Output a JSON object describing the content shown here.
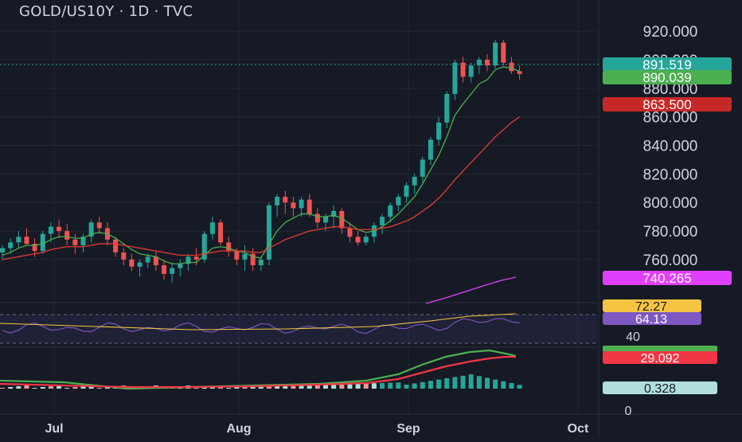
{
  "title": "GOLD/US10Y · 1D · TVC",
  "colors": {
    "background": "#161a25",
    "up": "#26a69a",
    "down": "#ef5350",
    "ema_fast": "#4caf50",
    "ema_slow": "#e53935",
    "ma_long": "#e040fb",
    "rsi": "#7e57c2",
    "rsi_ma": "#f5c542",
    "macd": "#4caf50",
    "signal": "#f23645",
    "grid": "#232734",
    "text": "#d1d4dc"
  },
  "price_axis": {
    "ticks": [
      "920.000",
      "900.000",
      "880.000",
      "860.000",
      "840.000",
      "820.000",
      "800.000",
      "780.000",
      "760.000"
    ],
    "ylim": [
      746,
      924
    ]
  },
  "x_labels": [
    "Jul",
    "Aug",
    "Sep",
    "Oct"
  ],
  "tags": [
    {
      "label": "891.519",
      "value": 891.519,
      "color": "#26a69a",
      "text_color": "#ffffff"
    },
    {
      "label": "890.039",
      "value": 890.039,
      "color": "#4caf50",
      "text_color": "#ffffff"
    },
    {
      "label": "863.500",
      "value": 863.5,
      "color": "#c62828",
      "text_color": "#ffffff"
    },
    {
      "label": "740.265",
      "value": 740.265,
      "color": "#e040fb",
      "text_color": "#ffffff"
    }
  ],
  "rsi": {
    "ticks": [
      "40"
    ],
    "tags": [
      {
        "label": "72.27",
        "color": "#f5c542",
        "text_color": "#161a25"
      },
      {
        "label": "64.13",
        "color": "#7e57c2",
        "text_color": "#ffffff"
      }
    ]
  },
  "macd": {
    "ticks": [
      "0"
    ],
    "tags": [
      {
        "label": "29.092",
        "color": "#f23645",
        "text_color": "#ffffff"
      },
      {
        "label": "0.328",
        "color": "#b2dfdb",
        "text_color": "#161a25"
      }
    ]
  },
  "chart_data": {
    "type": "candlestick",
    "title": "GOLD/US10Y · 1D · TVC",
    "series": [
      {
        "name": "OHLC",
        "candles": [
          [
            765,
            770,
            760,
            768
          ],
          [
            768,
            775,
            764,
            772
          ],
          [
            772,
            780,
            768,
            776
          ],
          [
            776,
            782,
            770,
            771
          ],
          [
            771,
            775,
            762,
            766
          ],
          [
            766,
            780,
            764,
            778
          ],
          [
            778,
            786,
            772,
            783
          ],
          [
            783,
            788,
            775,
            780
          ],
          [
            780,
            785,
            770,
            774
          ],
          [
            774,
            778,
            764,
            770
          ],
          [
            770,
            778,
            765,
            776
          ],
          [
            776,
            788,
            772,
            786
          ],
          [
            786,
            790,
            778,
            782
          ],
          [
            782,
            786,
            770,
            774
          ],
          [
            774,
            776,
            762,
            765
          ],
          [
            765,
            768,
            756,
            760
          ],
          [
            760,
            764,
            752,
            755
          ],
          [
            755,
            760,
            748,
            758
          ],
          [
            758,
            764,
            754,
            762
          ],
          [
            762,
            766,
            752,
            756
          ],
          [
            756,
            760,
            746,
            750
          ],
          [
            750,
            758,
            744,
            754
          ],
          [
            754,
            760,
            748,
            757
          ],
          [
            757,
            764,
            752,
            762
          ],
          [
            762,
            768,
            756,
            760
          ],
          [
            760,
            780,
            758,
            778
          ],
          [
            778,
            790,
            774,
            786
          ],
          [
            786,
            788,
            770,
            772
          ],
          [
            772,
            776,
            762,
            766
          ],
          [
            766,
            768,
            756,
            760
          ],
          [
            760,
            770,
            752,
            764
          ],
          [
            764,
            768,
            752,
            756
          ],
          [
            756,
            762,
            752,
            760
          ],
          [
            760,
            800,
            756,
            798
          ],
          [
            798,
            806,
            790,
            804
          ],
          [
            804,
            808,
            792,
            800
          ],
          [
            800,
            804,
            790,
            796
          ],
          [
            796,
            804,
            790,
            802
          ],
          [
            802,
            806,
            790,
            792
          ],
          [
            792,
            796,
            782,
            786
          ],
          [
            786,
            792,
            780,
            790
          ],
          [
            790,
            798,
            782,
            794
          ],
          [
            794,
            796,
            778,
            782
          ],
          [
            782,
            786,
            772,
            776
          ],
          [
            776,
            780,
            770,
            772
          ],
          [
            772,
            778,
            770,
            776
          ],
          [
            776,
            786,
            772,
            784
          ],
          [
            784,
            792,
            778,
            790
          ],
          [
            790,
            800,
            786,
            798
          ],
          [
            798,
            806,
            794,
            804
          ],
          [
            804,
            814,
            800,
            812
          ],
          [
            812,
            820,
            806,
            818
          ],
          [
            818,
            832,
            814,
            830
          ],
          [
            830,
            846,
            826,
            844
          ],
          [
            844,
            860,
            840,
            856
          ],
          [
            856,
            878,
            852,
            876
          ],
          [
            876,
            900,
            872,
            898
          ],
          [
            898,
            902,
            884,
            888
          ],
          [
            888,
            898,
            884,
            896
          ],
          [
            896,
            902,
            890,
            900
          ],
          [
            900,
            904,
            892,
            896
          ],
          [
            896,
            914,
            894,
            912
          ],
          [
            912,
            914,
            896,
            898
          ],
          [
            898,
            902,
            890,
            892
          ],
          [
            892,
            896,
            886,
            890
          ]
        ]
      },
      {
        "name": "EMA fast",
        "values": [
          763,
          765,
          768,
          770,
          770,
          771,
          774,
          776,
          776,
          775,
          775,
          778,
          779,
          778,
          775,
          771,
          767,
          764,
          763,
          762,
          759,
          757,
          757,
          758,
          758,
          763,
          768,
          769,
          768,
          766,
          765,
          762,
          761,
          771,
          780,
          786,
          789,
          792,
          792,
          790,
          790,
          791,
          789,
          785,
          781,
          779,
          780,
          783,
          787,
          792,
          798,
          804,
          813,
          823,
          833,
          846,
          861,
          869,
          876,
          883,
          886,
          893,
          895,
          894,
          892
        ]
      },
      {
        "name": "EMA slow",
        "values": [
          760,
          761,
          762,
          763,
          764,
          765,
          767,
          768,
          769,
          769,
          769,
          770,
          771,
          771,
          771,
          770,
          769,
          768,
          767,
          766,
          765,
          764,
          763,
          763,
          763,
          764,
          765,
          766,
          766,
          766,
          766,
          765,
          765,
          768,
          771,
          774,
          776,
          778,
          780,
          781,
          782,
          783,
          783,
          782,
          781,
          781,
          781,
          782,
          783,
          785,
          787,
          790,
          794,
          798,
          803,
          809,
          816,
          822,
          828,
          834,
          840,
          846,
          851,
          856,
          860
        ]
      }
    ],
    "ylim": [
      746,
      924
    ],
    "x_labels": [
      "Jul",
      "Aug",
      "Sep",
      "Oct"
    ]
  }
}
